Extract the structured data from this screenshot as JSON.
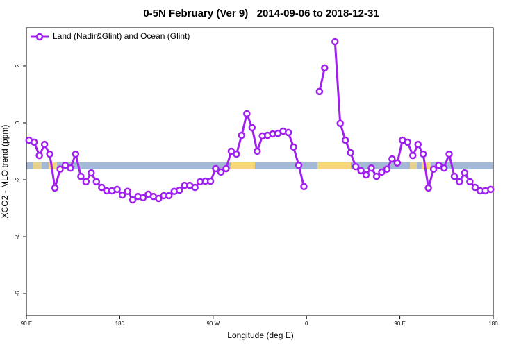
{
  "chart_data": {
    "type": "line",
    "title": "0-5N February (Ver 9)   2014-09-06 to 2018-12-31",
    "xlabel": "Longitude (deg E)",
    "ylabel": "XCO2 - MLO trend (ppm)",
    "xlim": [
      90,
      540
    ],
    "xticks": [
      {
        "value": 90,
        "label": "90 E"
      },
      180,
      {
        "value": 270,
        "label": "90 W"
      },
      {
        "value": 360,
        "label": "0"
      },
      {
        "value": 450,
        "label": "90 E"
      },
      {
        "value": 540,
        "label": "180"
      }
    ],
    "ylim": [
      -6.78,
      3.34
    ],
    "yticks": [
      -6,
      -4,
      -2,
      0,
      2
    ],
    "legend": "top-left",
    "x": [
      92.5,
      97.5,
      102.5,
      107.5,
      112.5,
      117.5,
      122.5,
      127.5,
      132.5,
      137.5,
      142.5,
      147.5,
      152.5,
      157.5,
      162.5,
      167.5,
      172.5,
      177.5,
      182.5,
      187.5,
      192.5,
      197.5,
      202.5,
      207.5,
      212.5,
      217.5,
      222.5,
      227.5,
      232.5,
      237.5,
      242.5,
      247.5,
      252.5,
      257.5,
      262.5,
      267.5,
      272.5,
      277.5,
      282.5,
      287.5,
      292.5,
      297.5,
      302.5,
      307.5,
      312.5,
      317.5,
      322.5,
      327.5,
      332.5,
      337.5,
      342.5,
      347.5,
      352.5,
      357.5,
      362.5,
      367.5,
      372.5,
      377.5,
      382.5,
      387.5,
      392.5,
      397.5,
      402.5,
      407.5,
      412.5,
      417.5,
      422.5,
      427.5,
      432.5,
      437.5,
      442.5,
      447.5,
      452.5,
      457.5,
      462.5,
      467.5,
      472.5,
      477.5,
      482.5,
      487.5,
      492.5,
      497.5,
      502.5,
      507.5,
      512.5,
      517.5,
      522.5,
      527.5,
      532.5,
      537.5
    ],
    "series": [
      {
        "name": "Land (Nadir&Glint) and Ocean (Glint)",
        "color": "#a020f0",
        "values": [
          -0.61,
          -0.68,
          -1.15,
          -0.76,
          -1.1,
          -2.29,
          -1.63,
          -1.49,
          -1.59,
          -1.1,
          -1.88,
          -2.07,
          -1.76,
          -2.07,
          -2.27,
          -2.39,
          -2.39,
          -2.34,
          -2.54,
          -2.41,
          -2.71,
          -2.59,
          -2.63,
          -2.51,
          -2.59,
          -2.66,
          -2.56,
          -2.56,
          -2.41,
          -2.37,
          -2.2,
          -2.2,
          -2.27,
          -2.07,
          -2.05,
          -2.05,
          -1.61,
          -1.73,
          -1.61,
          -1.0,
          -1.1,
          -0.44,
          0.32,
          -0.17,
          -1.0,
          -0.46,
          -0.44,
          -0.39,
          -0.37,
          -0.29,
          -0.34,
          -0.85,
          -1.49,
          -2.24,
          null,
          null,
          1.1,
          1.93,
          null,
          2.85,
          -0.02,
          -0.61,
          -1.05,
          -1.54,
          -1.68,
          -1.83,
          -1.59,
          -1.88,
          -1.73,
          -1.63,
          -1.27,
          -1.41,
          -0.61,
          -0.68,
          -1.15,
          -0.76,
          -1.1,
          -2.29,
          -1.63,
          -1.49,
          -1.59,
          -1.1,
          -1.88,
          -2.07,
          -1.76,
          -2.07,
          -2.27,
          -2.39,
          -2.39,
          -2.34
        ]
      }
    ]
  }
}
